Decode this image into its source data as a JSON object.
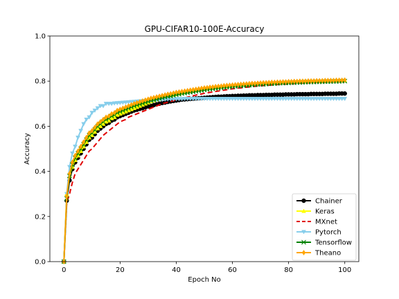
{
  "chart_data": {
    "type": "line",
    "title": "GPU-CIFAR10-100E-Accuracy",
    "xlabel": "Epoch No",
    "ylabel": "Accuracy",
    "xlim": [
      -5,
      105
    ],
    "ylim": [
      0.0,
      1.0
    ],
    "xticks": [
      0,
      20,
      40,
      60,
      80,
      100
    ],
    "xtick_labels": [
      "0",
      "20",
      "40",
      "60",
      "80",
      "100"
    ],
    "yticks": [
      0.0,
      0.2,
      0.4,
      0.6,
      0.8,
      1.0
    ],
    "ytick_labels": [
      "0.0",
      "0.2",
      "0.4",
      "0.6",
      "0.8",
      "1.0"
    ],
    "grid": false,
    "legend_position": "lower-right",
    "x": [
      0,
      1,
      2,
      3,
      4,
      5,
      6,
      7,
      8,
      9,
      10,
      11,
      12,
      13,
      14,
      15,
      16,
      17,
      18,
      19,
      20,
      21,
      22,
      23,
      24,
      25,
      26,
      27,
      28,
      29,
      30,
      31,
      32,
      33,
      34,
      35,
      36,
      37,
      38,
      39,
      40,
      41,
      42,
      43,
      44,
      45,
      46,
      47,
      48,
      49,
      50,
      51,
      52,
      53,
      54,
      55,
      56,
      57,
      58,
      59,
      60,
      61,
      62,
      63,
      64,
      65,
      66,
      67,
      68,
      69,
      70,
      71,
      72,
      73,
      74,
      75,
      76,
      77,
      78,
      79,
      80,
      81,
      82,
      83,
      84,
      85,
      86,
      87,
      88,
      89,
      90,
      91,
      92,
      93,
      94,
      95,
      96,
      97,
      98,
      99,
      100
    ],
    "series": [
      {
        "name": "Chainer",
        "color": "#000000",
        "linestyle": "solid",
        "marker": "circle",
        "values": [
          0.0,
          0.27,
          0.36,
          0.41,
          0.44,
          0.46,
          0.48,
          0.5,
          0.52,
          0.54,
          0.55,
          0.565,
          0.58,
          0.59,
          0.6,
          0.61,
          0.615,
          0.625,
          0.63,
          0.64,
          0.645,
          0.65,
          0.655,
          0.66,
          0.665,
          0.67,
          0.673,
          0.677,
          0.68,
          0.684,
          0.688,
          0.69,
          0.694,
          0.697,
          0.7,
          0.703,
          0.705,
          0.708,
          0.71,
          0.712,
          0.714,
          0.716,
          0.718,
          0.719,
          0.72,
          0.721,
          0.722,
          0.723,
          0.724,
          0.725,
          0.726,
          0.727,
          0.728,
          0.729,
          0.73,
          0.731,
          0.731,
          0.732,
          0.733,
          0.733,
          0.734,
          0.734,
          0.735,
          0.735,
          0.736,
          0.736,
          0.737,
          0.737,
          0.737,
          0.738,
          0.738,
          0.738,
          0.739,
          0.739,
          0.739,
          0.74,
          0.74,
          0.74,
          0.74,
          0.741,
          0.741,
          0.741,
          0.741,
          0.742,
          0.742,
          0.742,
          0.742,
          0.742,
          0.743,
          0.743,
          0.743,
          0.743,
          0.743,
          0.744,
          0.744,
          0.744,
          0.744,
          0.744,
          0.745,
          0.745,
          0.745
        ]
      },
      {
        "name": "Keras",
        "color": "#ffff00",
        "linestyle": "solid",
        "marker": "triangle-up",
        "values": [
          0.0,
          0.3,
          0.38,
          0.42,
          0.45,
          0.47,
          0.49,
          0.51,
          0.53,
          0.55,
          0.56,
          0.575,
          0.59,
          0.6,
          0.61,
          0.62,
          0.625,
          0.635,
          0.64,
          0.65,
          0.655,
          0.66,
          0.665,
          0.67,
          0.675,
          0.68,
          0.685,
          0.69,
          0.695,
          0.7,
          0.705,
          0.71,
          0.714,
          0.718,
          0.722,
          0.726,
          0.73,
          0.733,
          0.736,
          0.739,
          0.742,
          0.745,
          0.748,
          0.75,
          0.753,
          0.755,
          0.757,
          0.76,
          0.762,
          0.764,
          0.766,
          0.768,
          0.77,
          0.771,
          0.773,
          0.774,
          0.776,
          0.777,
          0.778,
          0.78,
          0.781,
          0.782,
          0.783,
          0.784,
          0.785,
          0.786,
          0.787,
          0.788,
          0.789,
          0.79,
          0.79,
          0.791,
          0.792,
          0.793,
          0.793,
          0.794,
          0.794,
          0.795,
          0.796,
          0.796,
          0.797,
          0.797,
          0.797,
          0.798,
          0.798,
          0.799,
          0.799,
          0.799,
          0.8,
          0.8,
          0.8,
          0.801,
          0.801,
          0.801,
          0.802,
          0.802,
          0.802,
          0.802,
          0.803,
          0.803,
          0.803
        ]
      },
      {
        "name": "MXnet",
        "color": "#e00000",
        "linestyle": "dashed",
        "marker": "none",
        "values": [
          0.0,
          0.26,
          0.3,
          0.35,
          0.39,
          0.41,
          0.43,
          0.45,
          0.47,
          0.49,
          0.5,
          0.515,
          0.53,
          0.545,
          0.56,
          0.57,
          0.58,
          0.59,
          0.6,
          0.61,
          0.62,
          0.625,
          0.63,
          0.64,
          0.645,
          0.65,
          0.655,
          0.66,
          0.665,
          0.67,
          0.675,
          0.68,
          0.685,
          0.69,
          0.695,
          0.7,
          0.703,
          0.707,
          0.71,
          0.713,
          0.716,
          0.72,
          0.723,
          0.726,
          0.729,
          0.732,
          0.735,
          0.738,
          0.741,
          0.743,
          0.746,
          0.748,
          0.75,
          0.752,
          0.754,
          0.756,
          0.758,
          0.76,
          0.762,
          0.764,
          0.766,
          0.767,
          0.769,
          0.77,
          0.772,
          0.773,
          0.774,
          0.776,
          0.777,
          0.778,
          0.779,
          0.78,
          0.781,
          0.782,
          0.783,
          0.784,
          0.785,
          0.786,
          0.786,
          0.787,
          0.788,
          0.789,
          0.789,
          0.79,
          0.791,
          0.791,
          0.792,
          0.792,
          0.793,
          0.793,
          0.794,
          0.794,
          0.795,
          0.795,
          0.796,
          0.796,
          0.796,
          0.797,
          0.797,
          0.797,
          0.798
        ]
      },
      {
        "name": "Pytorch",
        "color": "#87ceeb",
        "linestyle": "solid",
        "marker": "triangle-down",
        "values": [
          0.0,
          0.3,
          0.42,
          0.48,
          0.51,
          0.55,
          0.58,
          0.61,
          0.63,
          0.64,
          0.66,
          0.67,
          0.68,
          0.69,
          0.69,
          0.7,
          0.7,
          0.7,
          0.702,
          0.703,
          0.704,
          0.705,
          0.706,
          0.707,
          0.708,
          0.709,
          0.71,
          0.711,
          0.712,
          0.713,
          0.714,
          0.715,
          0.716,
          0.717,
          0.718,
          0.718,
          0.719,
          0.72,
          0.72,
          0.72,
          0.721,
          0.721,
          0.721,
          0.722,
          0.722,
          0.722,
          0.722,
          0.722,
          0.722,
          0.722,
          0.722,
          0.722,
          0.722,
          0.722,
          0.722,
          0.722,
          0.722,
          0.722,
          0.722,
          0.722,
          0.722,
          0.722,
          0.722,
          0.722,
          0.722,
          0.722,
          0.722,
          0.722,
          0.722,
          0.722,
          0.722,
          0.722,
          0.722,
          0.722,
          0.722,
          0.722,
          0.722,
          0.722,
          0.722,
          0.722,
          0.722,
          0.722,
          0.722,
          0.722,
          0.722,
          0.722,
          0.722,
          0.722,
          0.722,
          0.722,
          0.722,
          0.722,
          0.722,
          0.722,
          0.722,
          0.722,
          0.722,
          0.722,
          0.722,
          0.722,
          0.722
        ]
      },
      {
        "name": "Tensorflow",
        "color": "#008000",
        "linestyle": "solid",
        "marker": "x",
        "values": [
          0.0,
          0.28,
          0.38,
          0.43,
          0.46,
          0.48,
          0.5,
          0.52,
          0.54,
          0.56,
          0.57,
          0.585,
          0.6,
          0.61,
          0.62,
          0.63,
          0.635,
          0.645,
          0.65,
          0.66,
          0.665,
          0.67,
          0.675,
          0.68,
          0.685,
          0.69,
          0.694,
          0.698,
          0.702,
          0.706,
          0.71,
          0.714,
          0.717,
          0.72,
          0.723,
          0.726,
          0.729,
          0.732,
          0.734,
          0.737,
          0.74,
          0.742,
          0.745,
          0.747,
          0.749,
          0.751,
          0.753,
          0.755,
          0.757,
          0.759,
          0.761,
          0.763,
          0.765,
          0.766,
          0.768,
          0.769,
          0.771,
          0.772,
          0.773,
          0.775,
          0.776,
          0.777,
          0.778,
          0.779,
          0.78,
          0.781,
          0.782,
          0.783,
          0.784,
          0.785,
          0.786,
          0.786,
          0.787,
          0.788,
          0.789,
          0.789,
          0.79,
          0.791,
          0.791,
          0.792,
          0.792,
          0.793,
          0.793,
          0.794,
          0.794,
          0.795,
          0.795,
          0.796,
          0.796,
          0.796,
          0.797,
          0.797,
          0.797,
          0.798,
          0.798,
          0.798,
          0.799,
          0.799,
          0.799,
          0.8,
          0.8
        ]
      },
      {
        "name": "Theano",
        "color": "#ffa500",
        "linestyle": "solid",
        "marker": "diamond",
        "values": [
          0.0,
          0.29,
          0.39,
          0.44,
          0.47,
          0.49,
          0.51,
          0.53,
          0.55,
          0.57,
          0.58,
          0.595,
          0.61,
          0.62,
          0.63,
          0.64,
          0.645,
          0.655,
          0.66,
          0.67,
          0.675,
          0.68,
          0.685,
          0.69,
          0.695,
          0.7,
          0.704,
          0.708,
          0.712,
          0.716,
          0.72,
          0.724,
          0.727,
          0.73,
          0.733,
          0.736,
          0.739,
          0.742,
          0.744,
          0.747,
          0.75,
          0.752,
          0.754,
          0.756,
          0.758,
          0.76,
          0.762,
          0.764,
          0.766,
          0.768,
          0.77,
          0.771,
          0.773,
          0.774,
          0.776,
          0.777,
          0.778,
          0.78,
          0.781,
          0.782,
          0.783,
          0.784,
          0.785,
          0.786,
          0.787,
          0.788,
          0.789,
          0.79,
          0.79,
          0.791,
          0.792,
          0.793,
          0.793,
          0.794,
          0.795,
          0.795,
          0.796,
          0.796,
          0.797,
          0.797,
          0.798,
          0.798,
          0.799,
          0.799,
          0.8,
          0.8,
          0.8,
          0.801,
          0.801,
          0.801,
          0.802,
          0.802,
          0.802,
          0.803,
          0.803,
          0.803,
          0.803,
          0.804,
          0.804,
          0.804,
          0.805
        ]
      }
    ]
  }
}
